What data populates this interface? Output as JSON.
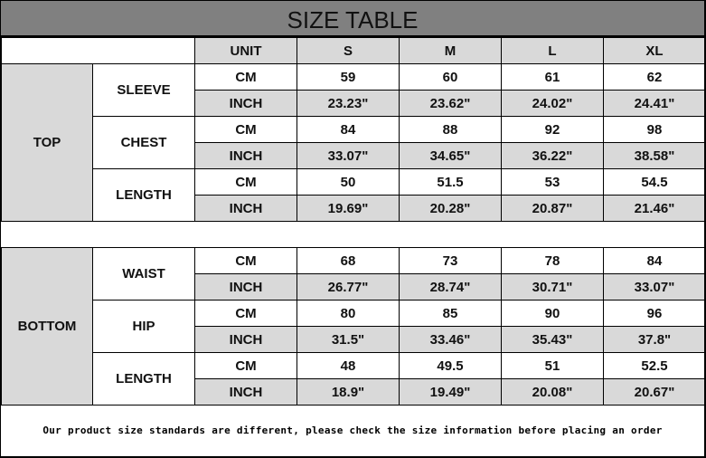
{
  "title": "SIZE TABLE",
  "header": {
    "unit": "UNIT",
    "sizes": [
      "S",
      "M",
      "L",
      "XL"
    ]
  },
  "sections": [
    {
      "name": "TOP",
      "measures": [
        {
          "name": "SLEEVE",
          "rows": [
            {
              "unit": "CM",
              "values": [
                "59",
                "60",
                "61",
                "62"
              ]
            },
            {
              "unit": "INCH",
              "values": [
                "23.23\"",
                "23.62\"",
                "24.02\"",
                "24.41\""
              ]
            }
          ]
        },
        {
          "name": "CHEST",
          "rows": [
            {
              "unit": "CM",
              "values": [
                "84",
                "88",
                "92",
                "98"
              ]
            },
            {
              "unit": "INCH",
              "values": [
                "33.07\"",
                "34.65\"",
                "36.22\"",
                "38.58\""
              ]
            }
          ]
        },
        {
          "name": "LENGTH",
          "rows": [
            {
              "unit": "CM",
              "values": [
                "50",
                "51.5",
                "53",
                "54.5"
              ]
            },
            {
              "unit": "INCH",
              "values": [
                "19.69\"",
                "20.28\"",
                "20.87\"",
                "21.46\""
              ]
            }
          ]
        }
      ]
    },
    {
      "name": "BOTTOM",
      "measures": [
        {
          "name": "WAIST",
          "rows": [
            {
              "unit": "CM",
              "values": [
                "68",
                "73",
                "78",
                "84"
              ]
            },
            {
              "unit": "INCH",
              "values": [
                "26.77\"",
                "28.74\"",
                "30.71\"",
                "33.07\""
              ]
            }
          ]
        },
        {
          "name": "HIP",
          "rows": [
            {
              "unit": "CM",
              "values": [
                "80",
                "85",
                "90",
                "96"
              ]
            },
            {
              "unit": "INCH",
              "values": [
                "31.5\"",
                "33.46\"",
                "35.43\"",
                "37.8\""
              ]
            }
          ]
        },
        {
          "name": "LENGTH",
          "rows": [
            {
              "unit": "CM",
              "values": [
                "48",
                "49.5",
                "51",
                "52.5"
              ]
            },
            {
              "unit": "INCH",
              "values": [
                "18.9\"",
                "19.49\"",
                "20.08\"",
                "20.67\""
              ]
            }
          ]
        }
      ]
    }
  ],
  "footer": "Our product size standards are different, please check the size information before placing an order",
  "colors": {
    "title_bg": "#808080",
    "shade": "#d9d9d9"
  }
}
